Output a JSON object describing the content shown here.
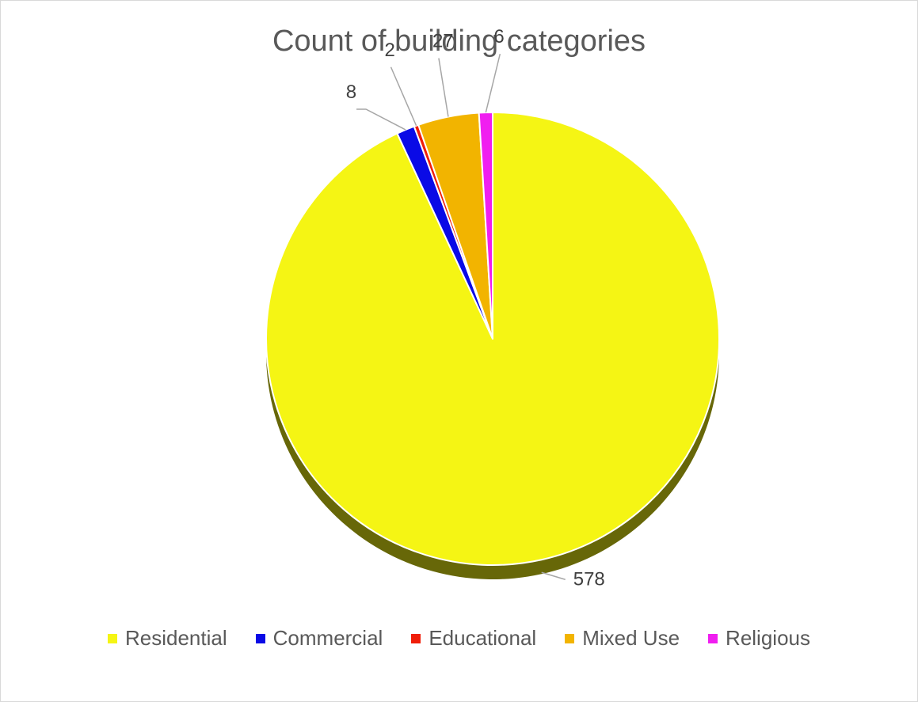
{
  "chart_data": {
    "type": "pie",
    "title": "Count of building categories",
    "categories": [
      "Residential",
      "Commercial",
      "Educational",
      "Mixed Use",
      "Religious"
    ],
    "values": [
      578,
      8,
      2,
      27,
      6
    ],
    "colors": [
      "#f5f514",
      "#0a0ae6",
      "#f01e0a",
      "#f2b400",
      "#f01ef0"
    ],
    "data_labels": [
      "578",
      "8",
      "2",
      "27",
      "6"
    ],
    "legend_position": "bottom"
  }
}
